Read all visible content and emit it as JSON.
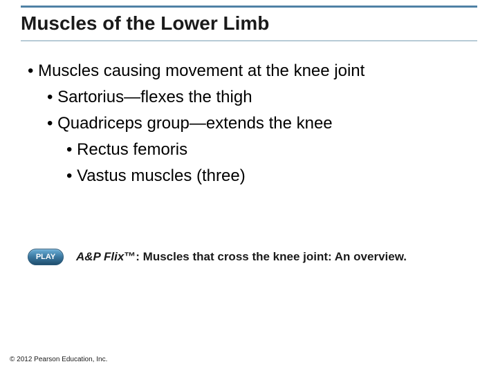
{
  "colors": {
    "rule_top": "#4f81a5",
    "rule_under": "#b7cad6",
    "title_text": "#1a1a1a",
    "body_text": "#000000",
    "play_btn_top": "#6baed6",
    "play_btn_mid": "#3b78a0",
    "play_btn_bot": "#1f4e6e",
    "play_btn_border": "#2c5a7a",
    "play_btn_text": "#ffffff",
    "background": "#ffffff"
  },
  "title": "Muscles of the Lower Limb",
  "bullets": {
    "l1": "• Muscles causing movement at the knee joint",
    "l2a": "• Sartorius—flexes the thigh",
    "l2b": "• Quadriceps group—extends the knee",
    "l3a": "• Rectus femoris",
    "l3b": "• Vastus muscles (three)"
  },
  "play": {
    "button_label": "PLAY",
    "prefix_italic": "A&P Flix",
    "tm": "™",
    "rest": ": Muscles that cross the knee joint: An overview."
  },
  "copyright": "© 2012 Pearson Education, Inc."
}
